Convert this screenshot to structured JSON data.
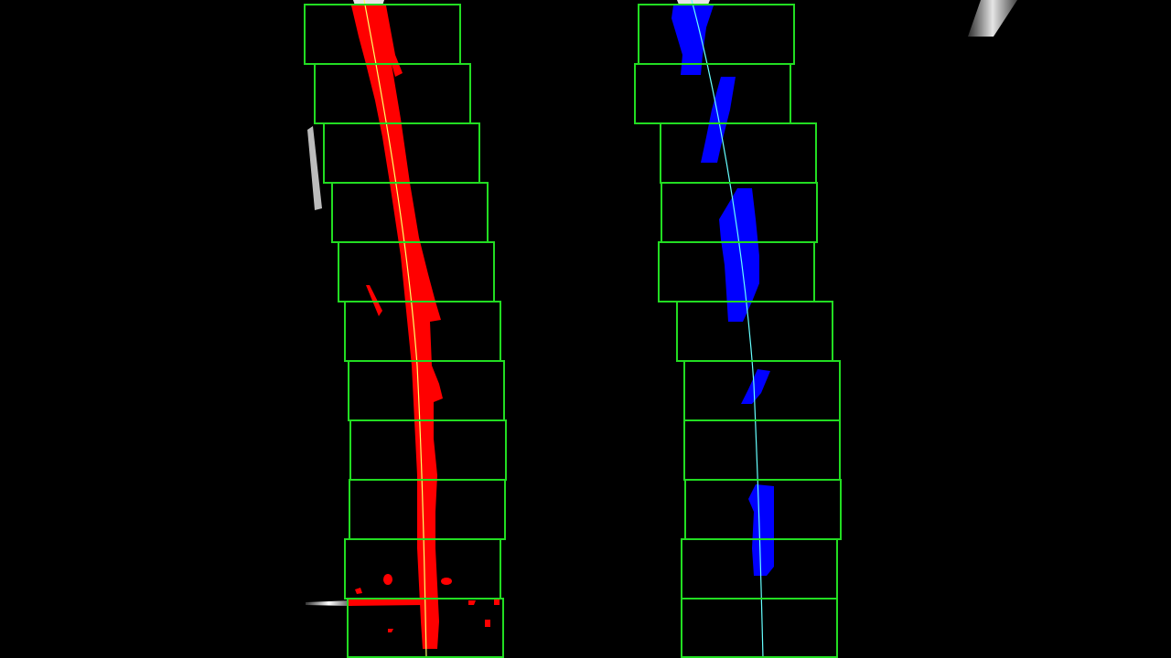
{
  "view": {
    "background_color": "#000000"
  },
  "colors": {
    "window_stroke": "#22dd22",
    "left_lane_pixels": "#ff0000",
    "right_lane_pixels": "#0000ff",
    "left_fit_line": "#ffff66",
    "right_fit_line": "#66ffff",
    "noise": "#ffffff"
  },
  "lanes": [
    {
      "id": "left",
      "window_count": 11,
      "pixel_color_key": "left_lane_pixels",
      "fit_color_key": "left_fit_line"
    },
    {
      "id": "right",
      "window_count": 11,
      "pixel_color_key": "right_lane_pixels",
      "fit_color_key": "right_fit_line"
    }
  ]
}
